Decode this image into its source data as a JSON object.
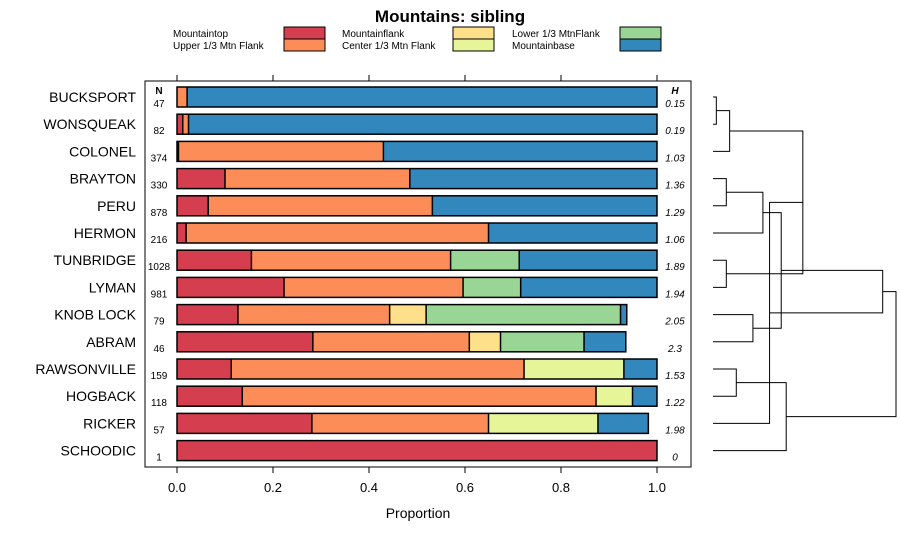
{
  "chart_data": {
    "type": "bar",
    "orientation": "horizontal",
    "stacked": true,
    "title": "Mountains: sibling",
    "xlabel": "Proportion",
    "xlim": [
      0,
      1
    ],
    "xticks": [
      "0.0",
      "0.2",
      "0.4",
      "0.6",
      "0.8",
      "1.0"
    ],
    "n_header": "N",
    "h_header": "H",
    "colors": [
      "#d53e4f",
      "#fc8d59",
      "#fee08b",
      "#e6f598",
      "#99d594",
      "#3288bd"
    ],
    "series": [
      {
        "name": "Mountaintop"
      },
      {
        "name": "Upper 1/3 Mtn Flank"
      },
      {
        "name": "Mountainflank"
      },
      {
        "name": "Center 1/3 Mtn Flank"
      },
      {
        "name": "Lower 1/3 MtnFlank"
      },
      {
        "name": "Mountainbase"
      }
    ],
    "rows": [
      {
        "label": "BUCKSPORT",
        "n": "47",
        "h": "0.15",
        "values": [
          0,
          0.021,
          0,
          0,
          0,
          0.979
        ]
      },
      {
        "label": "WONSQUEAK",
        "n": "82",
        "h": "0.19",
        "values": [
          0.012,
          0.012,
          0,
          0,
          0,
          0.976
        ]
      },
      {
        "label": "COLONEL",
        "n": "374",
        "h": "1.03",
        "values": [
          0.003,
          0.427,
          0,
          0,
          0,
          0.57
        ]
      },
      {
        "label": "BRAYTON",
        "n": "330",
        "h": "1.36",
        "values": [
          0.1,
          0.385,
          0,
          0,
          0,
          0.515
        ]
      },
      {
        "label": "PERU",
        "n": "878",
        "h": "1.29",
        "values": [
          0.065,
          0.467,
          0,
          0,
          0,
          0.468
        ]
      },
      {
        "label": "HERMON",
        "n": "216",
        "h": "1.06",
        "values": [
          0.019,
          0.63,
          0,
          0,
          0,
          0.351
        ]
      },
      {
        "label": "TUNBRIDGE",
        "n": "1028",
        "h": "1.89",
        "values": [
          0.155,
          0.415,
          0,
          0,
          0.143,
          0.287
        ]
      },
      {
        "label": "LYMAN",
        "n": "981",
        "h": "1.94",
        "values": [
          0.223,
          0.373,
          0,
          0,
          0.12,
          0.284
        ]
      },
      {
        "label": "KNOB LOCK",
        "n": "79",
        "h": "2.05",
        "values": [
          0.127,
          0.316,
          0.076,
          0,
          0.405,
          0.013
        ]
      },
      {
        "label": "ABRAM",
        "n": "46",
        "h": "2.3",
        "values": [
          0.283,
          0.326,
          0.065,
          0,
          0.174,
          0.087
        ]
      },
      {
        "label": "RAWSONVILLE",
        "n": "159",
        "h": "1.53",
        "values": [
          0.113,
          0.61,
          0,
          0.208,
          0,
          0.069
        ]
      },
      {
        "label": "HOGBACK",
        "n": "118",
        "h": "1.22",
        "values": [
          0.136,
          0.737,
          0,
          0.076,
          0,
          0.051
        ]
      },
      {
        "label": "RICKER",
        "n": "57",
        "h": "1.98",
        "values": [
          0.281,
          0.368,
          0,
          0.228,
          0,
          0.105
        ]
      },
      {
        "label": "SCHOODIC",
        "n": "1",
        "h": "0",
        "values": [
          1,
          0,
          0,
          0,
          0,
          0
        ]
      }
    ],
    "dendrogram": {
      "leaf_order": [
        "BUCKSPORT",
        "WONSQUEAK",
        "COLONEL",
        "BRAYTON",
        "PERU",
        "HERMON",
        "TUNBRIDGE",
        "LYMAN",
        "KNOB LOCK",
        "ABRAM",
        "RAWSONVILLE",
        "HOGBACK",
        "RICKER",
        "SCHOODIC"
      ],
      "merges": [
        {
          "a": 0,
          "b": 1,
          "height": 0.02
        },
        {
          "a": 3,
          "b": 4,
          "height": 0.08
        },
        {
          "a": 2,
          "b": 14,
          "height": 0.1
        },
        {
          "a": 6,
          "b": 7,
          "height": 0.08
        },
        {
          "a": 15,
          "b": 5,
          "height": 0.3
        },
        {
          "a": 16,
          "b": 17,
          "height": 0.54
        },
        {
          "a": 8,
          "b": 9,
          "height": 0.24
        },
        {
          "a": 10,
          "b": 11,
          "height": 0.14
        },
        {
          "a": 19,
          "b": 12,
          "height": 0.34
        },
        {
          "a": 18,
          "b": 20,
          "height": 0.41
        },
        {
          "a": 13,
          "b": 21,
          "height": 0.44
        },
        {
          "a": 22,
          "b": 23,
          "height": 1.02
        },
        {
          "a": 24,
          "b": 25,
          "height": 1.1
        }
      ]
    }
  }
}
